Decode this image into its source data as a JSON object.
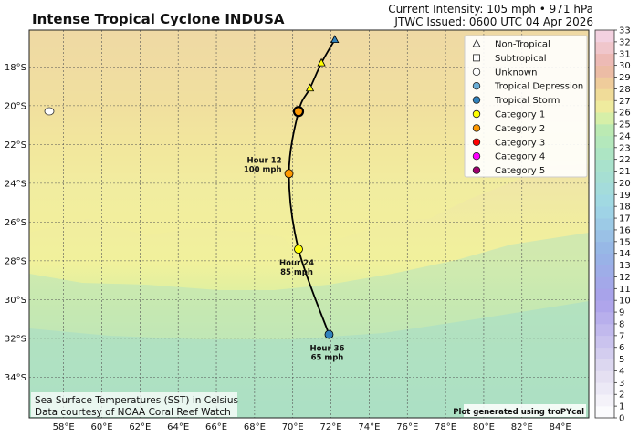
{
  "header": {
    "title": "Intense Tropical Cyclone INDUSA",
    "intensity_line": "Current Intensity: 105 mph • 971 hPa",
    "issued_line": "JTWC Issued: 0600 UTC 04 Apr 2026"
  },
  "axes": {
    "lon_labels": [
      "58°E",
      "60°E",
      "62°E",
      "64°E",
      "66°E",
      "68°E",
      "70°E",
      "72°E",
      "74°E",
      "76°E",
      "78°E",
      "80°E",
      "82°E",
      "84°E"
    ],
    "lon_values": [
      58,
      60,
      62,
      64,
      66,
      68,
      70,
      72,
      74,
      76,
      78,
      80,
      82,
      84
    ],
    "lat_labels": [
      "18°S",
      "20°S",
      "22°S",
      "24°S",
      "26°S",
      "28°S",
      "30°S",
      "32°S",
      "34°S"
    ],
    "lat_values": [
      -18,
      -20,
      -22,
      -24,
      -26,
      -28,
      -30,
      -32,
      -34
    ],
    "lon_range": [
      56.2,
      85.5
    ],
    "lat_range": [
      -36.1,
      -16.1
    ]
  },
  "legend": {
    "items": [
      {
        "label": "Non-Tropical",
        "marker": "triangle",
        "color": "#ffffff"
      },
      {
        "label": "Subtropical",
        "marker": "square",
        "color": "#ffffff"
      },
      {
        "label": "Unknown",
        "marker": "circle",
        "color": "#ffffff"
      },
      {
        "label": "Tropical Depression",
        "marker": "circle",
        "color": "#6baed6"
      },
      {
        "label": "Tropical Storm",
        "marker": "circle",
        "color": "#3182bd"
      },
      {
        "label": "Category 1",
        "marker": "circle",
        "color": "#ffff00"
      },
      {
        "label": "Category 2",
        "marker": "circle",
        "color": "#ff9900"
      },
      {
        "label": "Category 3",
        "marker": "circle",
        "color": "#ff0000"
      },
      {
        "label": "Category 4",
        "marker": "circle",
        "color": "#ff00ff"
      },
      {
        "label": "Category 5",
        "marker": "circle",
        "color": "#a0006e"
      }
    ]
  },
  "colorbar": {
    "labels": [
      "0",
      "2",
      "4",
      "6",
      "8",
      "10",
      "12",
      "14",
      "16",
      "18",
      "20",
      "22",
      "24",
      "26",
      "28",
      "30",
      "32"
    ],
    "odd_labels": [
      "1",
      "3",
      "5",
      "7",
      "9",
      "11",
      "13",
      "15",
      "17",
      "19",
      "21",
      "23",
      "25",
      "27",
      "29",
      "31",
      "33"
    ],
    "min": 0,
    "max": 33
  },
  "track": {
    "past_points": [
      {
        "lon": 72.2,
        "lat": -16.6,
        "marker": "triangle",
        "color": "#3182bd"
      },
      {
        "lon": 71.5,
        "lat": -17.8,
        "marker": "triangle",
        "color": "#ffff00"
      },
      {
        "lon": 70.9,
        "lat": -19.1,
        "marker": "triangle",
        "color": "#ffff00"
      }
    ],
    "current": {
      "lon": 70.3,
      "lat": -20.3,
      "color": "#ff9900"
    },
    "forecast": [
      {
        "lon": 69.8,
        "lat": -23.5,
        "color": "#ff9900",
        "hour": "Hour 12",
        "wind": "100 mph"
      },
      {
        "lon": 70.3,
        "lat": -27.4,
        "color": "#ffff00",
        "hour": "Hour 24",
        "wind": "85 mph"
      },
      {
        "lon": 71.9,
        "lat": -31.8,
        "color": "#3182bd",
        "hour": "Hour 36",
        "wind": "65 mph"
      }
    ]
  },
  "footer": {
    "sst_line": "Sea Surface Temperatures (SST) in Celsius",
    "credit_line": "Data courtesy of NOAA Coral Reef Watch",
    "generator": "Plot generated using troPYcal"
  }
}
